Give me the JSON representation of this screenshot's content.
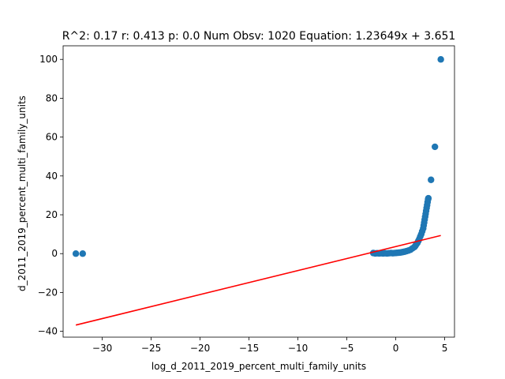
{
  "chart_data": {
    "type": "scatter",
    "title": "R^2: 0.17 r: 0.413 p: 0.0 Num Obsv: 1020 Equation: 1.23649x + 3.651",
    "xlabel": "log_d_2011_2019_percent_multi_family_units",
    "ylabel": "d_2011_2019_percent_multi_family_units",
    "xlim": [
      -34.0,
      6.0
    ],
    "ylim": [
      -43.0,
      107.0
    ],
    "xticks": [
      -30,
      -25,
      -20,
      -15,
      -10,
      -5,
      0,
      5
    ],
    "yticks": [
      -40,
      -20,
      0,
      20,
      40,
      60,
      80,
      100
    ],
    "grid": false,
    "legend": "none",
    "colors": {
      "points": "#1f77b4",
      "fit_line": "#ff0000"
    },
    "fit_line": {
      "slope": 1.23649,
      "intercept": 3.651,
      "x_range": [
        -32.7,
        4.6
      ]
    },
    "series": [
      {
        "points": [
          [
            -32.7,
            0.0
          ],
          [
            -32.0,
            0.0
          ],
          [
            -2.3,
            0.3
          ],
          [
            -2.1,
            0.1
          ],
          [
            -1.9,
            0.2
          ],
          [
            -1.7,
            0.1
          ],
          [
            -1.5,
            0.2
          ],
          [
            -1.3,
            0.1
          ],
          [
            -1.1,
            0.2
          ],
          [
            -0.9,
            0.1
          ],
          [
            -0.7,
            0.2
          ],
          [
            -0.5,
            0.3
          ],
          [
            -0.3,
            0.2
          ],
          [
            -0.1,
            0.3
          ],
          [
            0.1,
            0.4
          ],
          [
            0.3,
            0.5
          ],
          [
            0.5,
            0.6
          ],
          [
            0.7,
            0.8
          ],
          [
            0.9,
            1.0
          ],
          [
            1.1,
            1.3
          ],
          [
            1.3,
            1.6
          ],
          [
            1.5,
            2.0
          ],
          [
            1.7,
            2.7
          ],
          [
            1.9,
            3.4
          ],
          [
            2.0,
            4.0
          ],
          [
            2.1,
            4.8
          ],
          [
            2.2,
            5.5
          ],
          [
            2.3,
            6.5
          ],
          [
            2.4,
            7.5
          ],
          [
            2.5,
            8.8
          ],
          [
            2.6,
            10.0
          ],
          [
            2.7,
            11.5
          ],
          [
            2.8,
            13.0
          ],
          [
            2.85,
            14.5
          ],
          [
            2.9,
            16.0
          ],
          [
            2.95,
            17.5
          ],
          [
            3.0,
            19.0
          ],
          [
            3.05,
            20.5
          ],
          [
            3.1,
            22.0
          ],
          [
            3.15,
            23.5
          ],
          [
            3.2,
            25.0
          ],
          [
            3.25,
            26.5
          ],
          [
            3.3,
            28.0
          ],
          [
            3.33,
            28.5
          ],
          [
            3.6,
            38.0
          ],
          [
            4.0,
            55.0
          ],
          [
            4.6,
            100.0
          ]
        ]
      }
    ]
  }
}
